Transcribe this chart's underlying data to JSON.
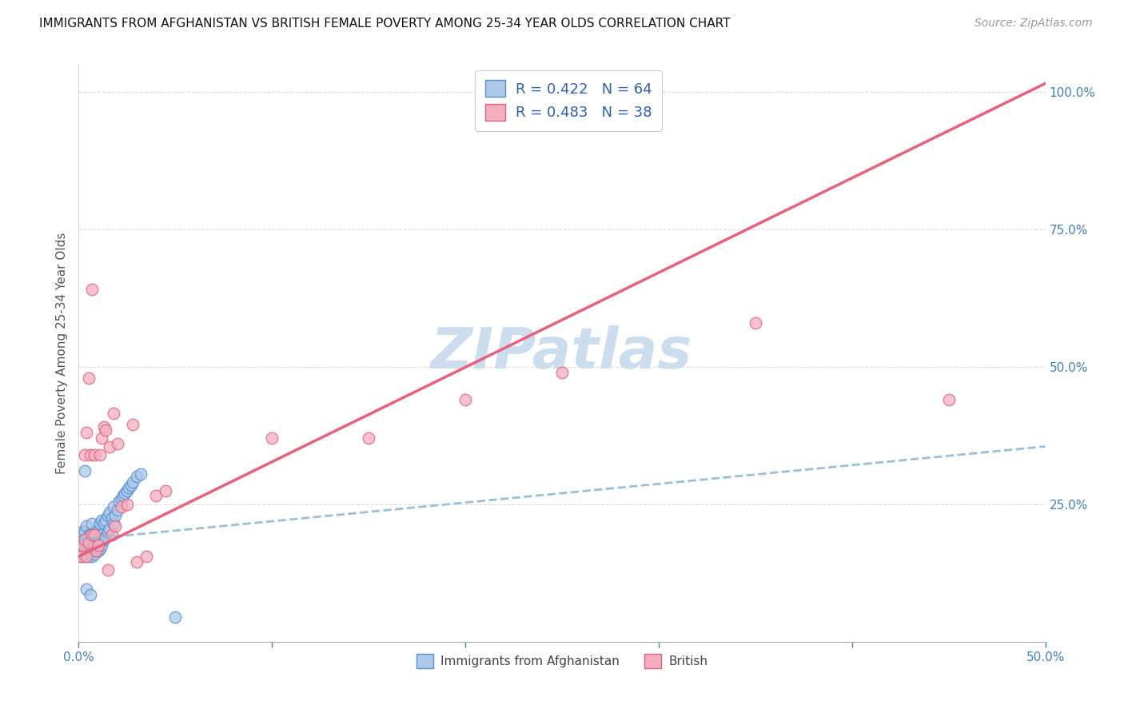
{
  "title": "IMMIGRANTS FROM AFGHANISTAN VS BRITISH FEMALE POVERTY AMONG 25-34 YEAR OLDS CORRELATION CHART",
  "source": "Source: ZipAtlas.com",
  "ylabel": "Female Poverty Among 25-34 Year Olds",
  "xlim": [
    0,
    0.5
  ],
  "ylim": [
    0,
    1.05
  ],
  "blue_R": 0.422,
  "blue_N": 64,
  "pink_R": 0.483,
  "pink_N": 38,
  "blue_color": "#adc8e8",
  "pink_color": "#f5aec0",
  "blue_edge_color": "#5090d0",
  "pink_edge_color": "#e0607a",
  "blue_line_color": "#6090c8",
  "pink_line_color": "#e8607a",
  "dashed_line_color": "#90b8d8",
  "watermark_color": "#ccdded",
  "background_color": "#ffffff",
  "grid_color": "#d8d8d8",
  "title_color": "#111111",
  "axis_tick_color": "#4080c0",
  "ylabel_color": "#555555",
  "source_color": "#999999",
  "legend_label_color": "#3060b0",
  "blue_line_intercept": 0.185,
  "blue_line_slope": 0.34,
  "pink_line_intercept": 0.155,
  "pink_line_slope": 1.72,
  "blue_x": [
    0.001,
    0.001,
    0.002,
    0.002,
    0.002,
    0.003,
    0.003,
    0.003,
    0.003,
    0.004,
    0.004,
    0.004,
    0.005,
    0.005,
    0.005,
    0.005,
    0.006,
    0.006,
    0.006,
    0.007,
    0.007,
    0.007,
    0.007,
    0.008,
    0.008,
    0.008,
    0.009,
    0.009,
    0.009,
    0.01,
    0.01,
    0.01,
    0.011,
    0.011,
    0.012,
    0.012,
    0.012,
    0.013,
    0.013,
    0.014,
    0.014,
    0.015,
    0.015,
    0.016,
    0.016,
    0.017,
    0.018,
    0.018,
    0.019,
    0.02,
    0.021,
    0.022,
    0.023,
    0.024,
    0.025,
    0.026,
    0.027,
    0.028,
    0.03,
    0.032,
    0.004,
    0.006,
    0.05,
    0.003
  ],
  "blue_y": [
    0.155,
    0.175,
    0.16,
    0.185,
    0.2,
    0.155,
    0.17,
    0.185,
    0.2,
    0.16,
    0.175,
    0.21,
    0.155,
    0.165,
    0.18,
    0.195,
    0.16,
    0.175,
    0.195,
    0.155,
    0.17,
    0.185,
    0.215,
    0.16,
    0.175,
    0.195,
    0.165,
    0.185,
    0.2,
    0.165,
    0.18,
    0.2,
    0.17,
    0.215,
    0.175,
    0.195,
    0.22,
    0.185,
    0.215,
    0.19,
    0.22,
    0.2,
    0.23,
    0.205,
    0.235,
    0.225,
    0.215,
    0.245,
    0.23,
    0.24,
    0.255,
    0.26,
    0.265,
    0.27,
    0.275,
    0.28,
    0.285,
    0.29,
    0.3,
    0.305,
    0.095,
    0.085,
    0.045,
    0.31
  ],
  "pink_x": [
    0.001,
    0.002,
    0.003,
    0.003,
    0.004,
    0.004,
    0.005,
    0.005,
    0.006,
    0.007,
    0.007,
    0.008,
    0.008,
    0.009,
    0.01,
    0.011,
    0.012,
    0.013,
    0.014,
    0.015,
    0.016,
    0.017,
    0.018,
    0.019,
    0.02,
    0.022,
    0.025,
    0.028,
    0.03,
    0.035,
    0.04,
    0.045,
    0.1,
    0.15,
    0.2,
    0.25,
    0.35,
    0.45
  ],
  "pink_y": [
    0.155,
    0.175,
    0.34,
    0.185,
    0.155,
    0.38,
    0.48,
    0.18,
    0.34,
    0.64,
    0.195,
    0.34,
    0.195,
    0.165,
    0.175,
    0.34,
    0.37,
    0.39,
    0.385,
    0.13,
    0.355,
    0.195,
    0.415,
    0.21,
    0.36,
    0.245,
    0.25,
    0.395,
    0.145,
    0.155,
    0.265,
    0.275,
    0.37,
    0.37,
    0.44,
    0.49,
    0.58,
    0.44
  ],
  "figsize": [
    14.06,
    8.92
  ],
  "dpi": 100
}
